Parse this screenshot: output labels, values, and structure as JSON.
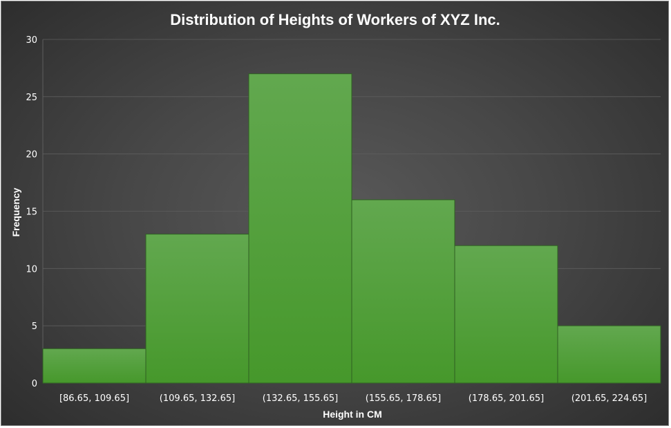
{
  "chart_data": {
    "type": "bar",
    "title": "Distribution of Heights of Workers of XYZ Inc.",
    "xlabel": "Height in CM",
    "ylabel": "Frequency",
    "categories": [
      "[86.65, 109.65]",
      "(109.65, 132.65]",
      "(132.65, 155.65]",
      "(155.65, 178.65]",
      "(178.65, 201.65]",
      "(201.65, 224.65]"
    ],
    "values": [
      3,
      13,
      27,
      16,
      12,
      5
    ],
    "ylim": [
      0,
      30
    ],
    "yticks": [
      "0",
      "5",
      "10",
      "15",
      "20",
      "25",
      "30"
    ],
    "grid": true,
    "legend": "none",
    "colors": {
      "bar_top": "#62a84f",
      "bar_bottom": "#46982b",
      "bar_border": "#2f5f22",
      "gridline": "#5e5e5e",
      "text": "#ffffff"
    }
  }
}
